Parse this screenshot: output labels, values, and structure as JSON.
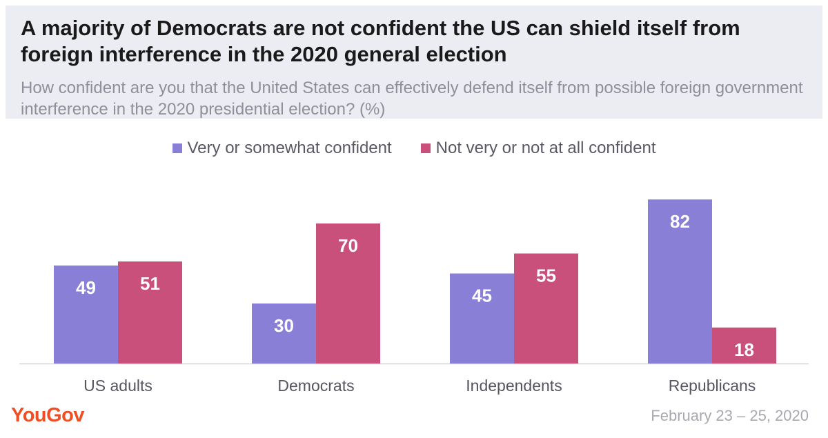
{
  "title": "A majority of Democrats are not confident the US can shield itself from foreign interference in the 2020 general election",
  "subtitle": "How confident are you that the United States can effectively defend itself from possible foreign government interference in the 2020 presidential election? (%)",
  "source": "February 23 – 25, 2020",
  "brand": {
    "logo_text": "YouGov",
    "color": "#f04e23"
  },
  "chart_data": {
    "type": "bar",
    "categories": [
      "US adults",
      "Democrats",
      "Independents",
      "Republicans"
    ],
    "series": [
      {
        "name": "Very or somewhat confident",
        "color": "#8a7fd6",
        "values": [
          49,
          30,
          45,
          82
        ]
      },
      {
        "name": "Not very or not at all confident",
        "color": "#c9507a",
        "values": [
          51,
          70,
          55,
          18
        ]
      }
    ],
    "ylim": [
      0,
      100
    ],
    "grid": false,
    "legend": "top-center",
    "data_labels": true
  }
}
